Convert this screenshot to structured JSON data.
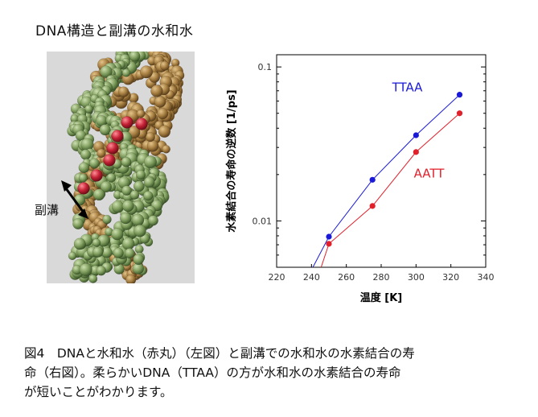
{
  "figure_title": "DNA構造と副溝の水和水",
  "groove_label": "副溝",
  "caption_lines": [
    "図4　DNAと水和水（赤丸）（左図）と副溝での水和水の水素結合の寿",
    "命（右図）。柔らかいDNA（TTAA）の方が水和水の水素結合の寿命",
    "が短いことがわかります。"
  ],
  "colors": {
    "ttaa": "#1a1ad6",
    "aatt": "#e0202a",
    "strand_brown": "#a27a3e",
    "strand_green": "#7c9a5a",
    "water": "#c42235"
  },
  "chart_data": {
    "type": "line",
    "xlabel": "温度 [K]",
    "ylabel": "水素結合の寿命の逆数 [1/ps]",
    "xlim": [
      220,
      340
    ],
    "ylim": [
      0.005,
      0.12
    ],
    "yscale": "log",
    "xticks": [
      220,
      240,
      260,
      280,
      300,
      320,
      340
    ],
    "yticks": [
      {
        "value": 0.1,
        "label": "0.1"
      },
      {
        "value": 0.01,
        "label": "0.01"
      }
    ],
    "grid": false,
    "series": [
      {
        "name": "TTAA",
        "color": "#1a1ad6",
        "line_start": [
          240,
          0.0048
        ],
        "x": [
          250,
          275,
          300,
          325
        ],
        "y": [
          0.0079,
          0.0185,
          0.036,
          0.066
        ]
      },
      {
        "name": "AATT",
        "color": "#e0202a",
        "line_start": [
          245,
          0.0048
        ],
        "x": [
          250,
          275,
          300,
          325
        ],
        "y": [
          0.0071,
          0.0125,
          0.028,
          0.05
        ]
      }
    ]
  }
}
